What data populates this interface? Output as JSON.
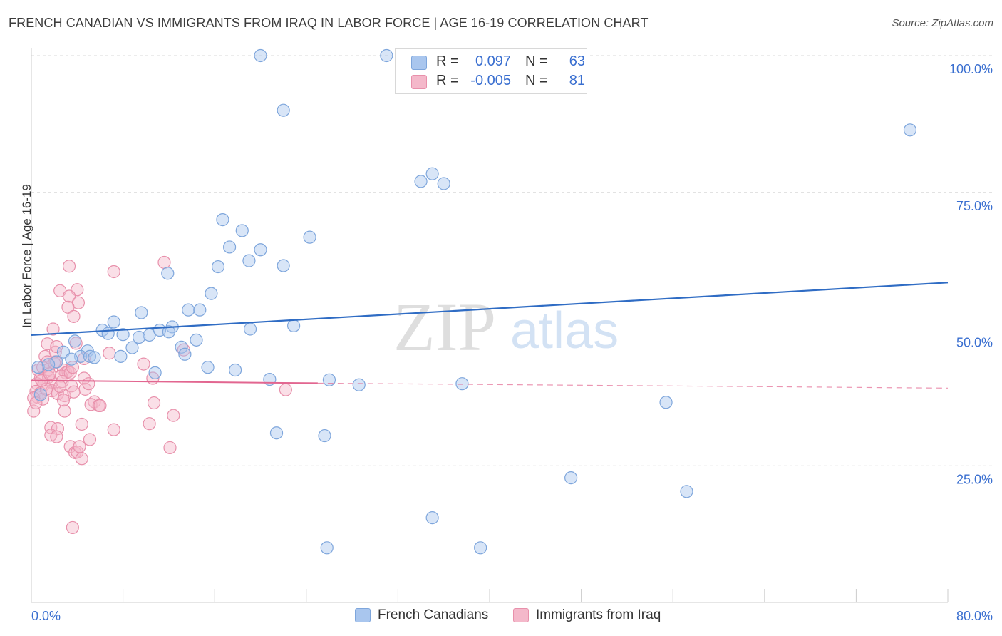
{
  "header": {
    "title": "FRENCH CANADIAN VS IMMIGRANTS FROM IRAQ IN LABOR FORCE | AGE 16-19 CORRELATION CHART",
    "source": "Source: ZipAtlas.com"
  },
  "watermark": {
    "zip": "ZIP",
    "atlas": "atlas"
  },
  "legend_top": {
    "rows": [
      {
        "r_label": "R =",
        "r_value": "0.097",
        "n_label": "N =",
        "n_value": "63"
      },
      {
        "r_label": "R =",
        "r_value": "-0.005",
        "n_label": "N =",
        "n_value": "81"
      }
    ]
  },
  "legend_bottom": {
    "items": [
      {
        "label": "French Canadians"
      },
      {
        "label": "Immigrants from Iraq"
      }
    ]
  },
  "colors": {
    "blue_fill": "#a9c6ee",
    "blue_stroke": "#7ea6dc",
    "blue_line": "#2f6cc4",
    "pink_fill": "#f4b8ca",
    "pink_stroke": "#e890ab",
    "pink_line": "#e26690",
    "tick_label": "#3a6fd0",
    "grid": "#d9d9d9"
  },
  "chart_data": {
    "type": "scatter",
    "title": "FRENCH CANADIAN VS IMMIGRANTS FROM IRAQ IN LABOR FORCE | AGE 16-19 CORRELATION CHART",
    "xlabel": "",
    "ylabel": "In Labor Force | Age 16-19",
    "xlim": [
      0,
      80
    ],
    "ylim": [
      0,
      100
    ],
    "x_tick_labels": [
      "0.0%",
      "80.0%"
    ],
    "y_ticks": [
      25,
      50,
      75,
      100
    ],
    "y_tick_labels": [
      "25.0%",
      "50.0%",
      "75.0%",
      "100.0%"
    ],
    "grid": true,
    "legend_position": "top-center",
    "series": [
      {
        "name": "French Canadians",
        "r": 0.097,
        "n": 63,
        "trend": {
          "x": [
            0,
            80
          ],
          "y": [
            48.9,
            58.5
          ],
          "style": "solid"
        },
        "points": [
          [
            20.0,
            100.0
          ],
          [
            31.0,
            100.0
          ],
          [
            39.0,
            100.0
          ],
          [
            22.0,
            90.0
          ],
          [
            76.7,
            86.4
          ],
          [
            34.0,
            77.0
          ],
          [
            35.0,
            78.4
          ],
          [
            36.0,
            76.6
          ],
          [
            16.7,
            70.0
          ],
          [
            18.4,
            68.0
          ],
          [
            24.3,
            66.8
          ],
          [
            17.3,
            65.0
          ],
          [
            20.0,
            64.5
          ],
          [
            19.0,
            62.5
          ],
          [
            16.3,
            61.4
          ],
          [
            22.0,
            61.6
          ],
          [
            11.9,
            60.2
          ],
          [
            15.7,
            56.5
          ],
          [
            9.6,
            53.0
          ],
          [
            13.7,
            53.5
          ],
          [
            14.7,
            53.5
          ],
          [
            7.2,
            51.3
          ],
          [
            6.2,
            49.8
          ],
          [
            6.7,
            49.2
          ],
          [
            8.0,
            49.0
          ],
          [
            10.3,
            48.9
          ],
          [
            11.2,
            49.8
          ],
          [
            12.3,
            50.4
          ],
          [
            19.1,
            50.0
          ],
          [
            22.9,
            50.6
          ],
          [
            9.4,
            48.5
          ],
          [
            14.4,
            48.0
          ],
          [
            8.8,
            46.6
          ],
          [
            13.1,
            46.7
          ],
          [
            13.4,
            45.4
          ],
          [
            3.8,
            47.8
          ],
          [
            2.8,
            45.8
          ],
          [
            4.9,
            46.0
          ],
          [
            7.8,
            45.0
          ],
          [
            4.3,
            45.0
          ],
          [
            5.1,
            45.0
          ],
          [
            5.5,
            44.8
          ],
          [
            2.2,
            44.0
          ],
          [
            0.6,
            43.0
          ],
          [
            15.4,
            43.0
          ],
          [
            17.8,
            42.5
          ],
          [
            10.8,
            42.0
          ],
          [
            20.8,
            40.8
          ],
          [
            26.0,
            40.7
          ],
          [
            28.6,
            39.8
          ],
          [
            37.6,
            40.0
          ],
          [
            55.4,
            36.6
          ],
          [
            21.4,
            31.0
          ],
          [
            25.6,
            30.5
          ],
          [
            47.1,
            22.8
          ],
          [
            57.2,
            20.3
          ],
          [
            35.0,
            15.5
          ],
          [
            25.8,
            10.0
          ],
          [
            39.2,
            10.0
          ],
          [
            0.8,
            38.0
          ],
          [
            1.5,
            43.5
          ],
          [
            3.5,
            44.5
          ],
          [
            12.0,
            49.5
          ]
        ]
      },
      {
        "name": "Immigrants from Iraq",
        "r": -0.005,
        "n": 81,
        "trend": {
          "x": [
            0,
            25
          ],
          "y": [
            40.6,
            40.1
          ],
          "style": "solid",
          "extension": {
            "x": [
              25,
              80
            ],
            "y": [
              40.1,
              39.2
            ],
            "style": "dashed"
          }
        },
        "points": [
          [
            3.3,
            61.5
          ],
          [
            7.2,
            60.5
          ],
          [
            11.6,
            62.2
          ],
          [
            2.5,
            57.0
          ],
          [
            4.0,
            57.2
          ],
          [
            3.3,
            56.0
          ],
          [
            4.1,
            54.8
          ],
          [
            3.2,
            54.0
          ],
          [
            3.7,
            52.3
          ],
          [
            1.9,
            50.0
          ],
          [
            6.8,
            45.6
          ],
          [
            1.4,
            47.3
          ],
          [
            1.2,
            45.0
          ],
          [
            2.1,
            45.8
          ],
          [
            4.6,
            44.6
          ],
          [
            1.4,
            44.0
          ],
          [
            2.1,
            44.0
          ],
          [
            3.9,
            47.4
          ],
          [
            9.8,
            43.6
          ],
          [
            0.6,
            42.5
          ],
          [
            1.0,
            43.0
          ],
          [
            1.5,
            42.6
          ],
          [
            2.8,
            42.5
          ],
          [
            3.0,
            42.0
          ],
          [
            3.2,
            42.2
          ],
          [
            0.8,
            41.0
          ],
          [
            1.5,
            41.2
          ],
          [
            2.6,
            41.4
          ],
          [
            3.4,
            42.0
          ],
          [
            4.6,
            41.0
          ],
          [
            10.6,
            41.0
          ],
          [
            0.5,
            40.0
          ],
          [
            1.1,
            39.8
          ],
          [
            1.8,
            40.3
          ],
          [
            2.7,
            40.4
          ],
          [
            3.5,
            39.6
          ],
          [
            4.7,
            39.0
          ],
          [
            0.4,
            38.6
          ],
          [
            0.8,
            38.3
          ],
          [
            1.8,
            38.7
          ],
          [
            2.3,
            38.2
          ],
          [
            2.9,
            37.8
          ],
          [
            0.5,
            37.6
          ],
          [
            1.0,
            37.2
          ],
          [
            2.8,
            37.0
          ],
          [
            5.5,
            36.7
          ],
          [
            5.2,
            36.2
          ],
          [
            5.9,
            36.0
          ],
          [
            0.2,
            37.4
          ],
          [
            2.9,
            35.0
          ],
          [
            10.7,
            36.5
          ],
          [
            12.4,
            34.2
          ],
          [
            0.2,
            35.0
          ],
          [
            1.7,
            32.0
          ],
          [
            2.3,
            31.8
          ],
          [
            4.4,
            32.6
          ],
          [
            7.2,
            31.6
          ],
          [
            10.3,
            32.7
          ],
          [
            1.7,
            30.6
          ],
          [
            2.2,
            30.3
          ],
          [
            5.1,
            29.8
          ],
          [
            3.4,
            28.5
          ],
          [
            3.8,
            27.4
          ],
          [
            4.0,
            27.5
          ],
          [
            4.4,
            26.3
          ],
          [
            12.1,
            28.3
          ],
          [
            3.6,
            13.7
          ],
          [
            22.2,
            38.9
          ],
          [
            13.3,
            46.2
          ],
          [
            5.0,
            40.0
          ],
          [
            2.0,
            43.8
          ],
          [
            1.3,
            39.0
          ],
          [
            0.9,
            40.6
          ],
          [
            3.7,
            38.5
          ],
          [
            2.5,
            39.5
          ],
          [
            6.0,
            36.0
          ],
          [
            1.6,
            41.8
          ],
          [
            4.2,
            28.5
          ],
          [
            0.4,
            36.5
          ],
          [
            2.2,
            46.8
          ],
          [
            3.6,
            43.0
          ]
        ]
      }
    ]
  }
}
